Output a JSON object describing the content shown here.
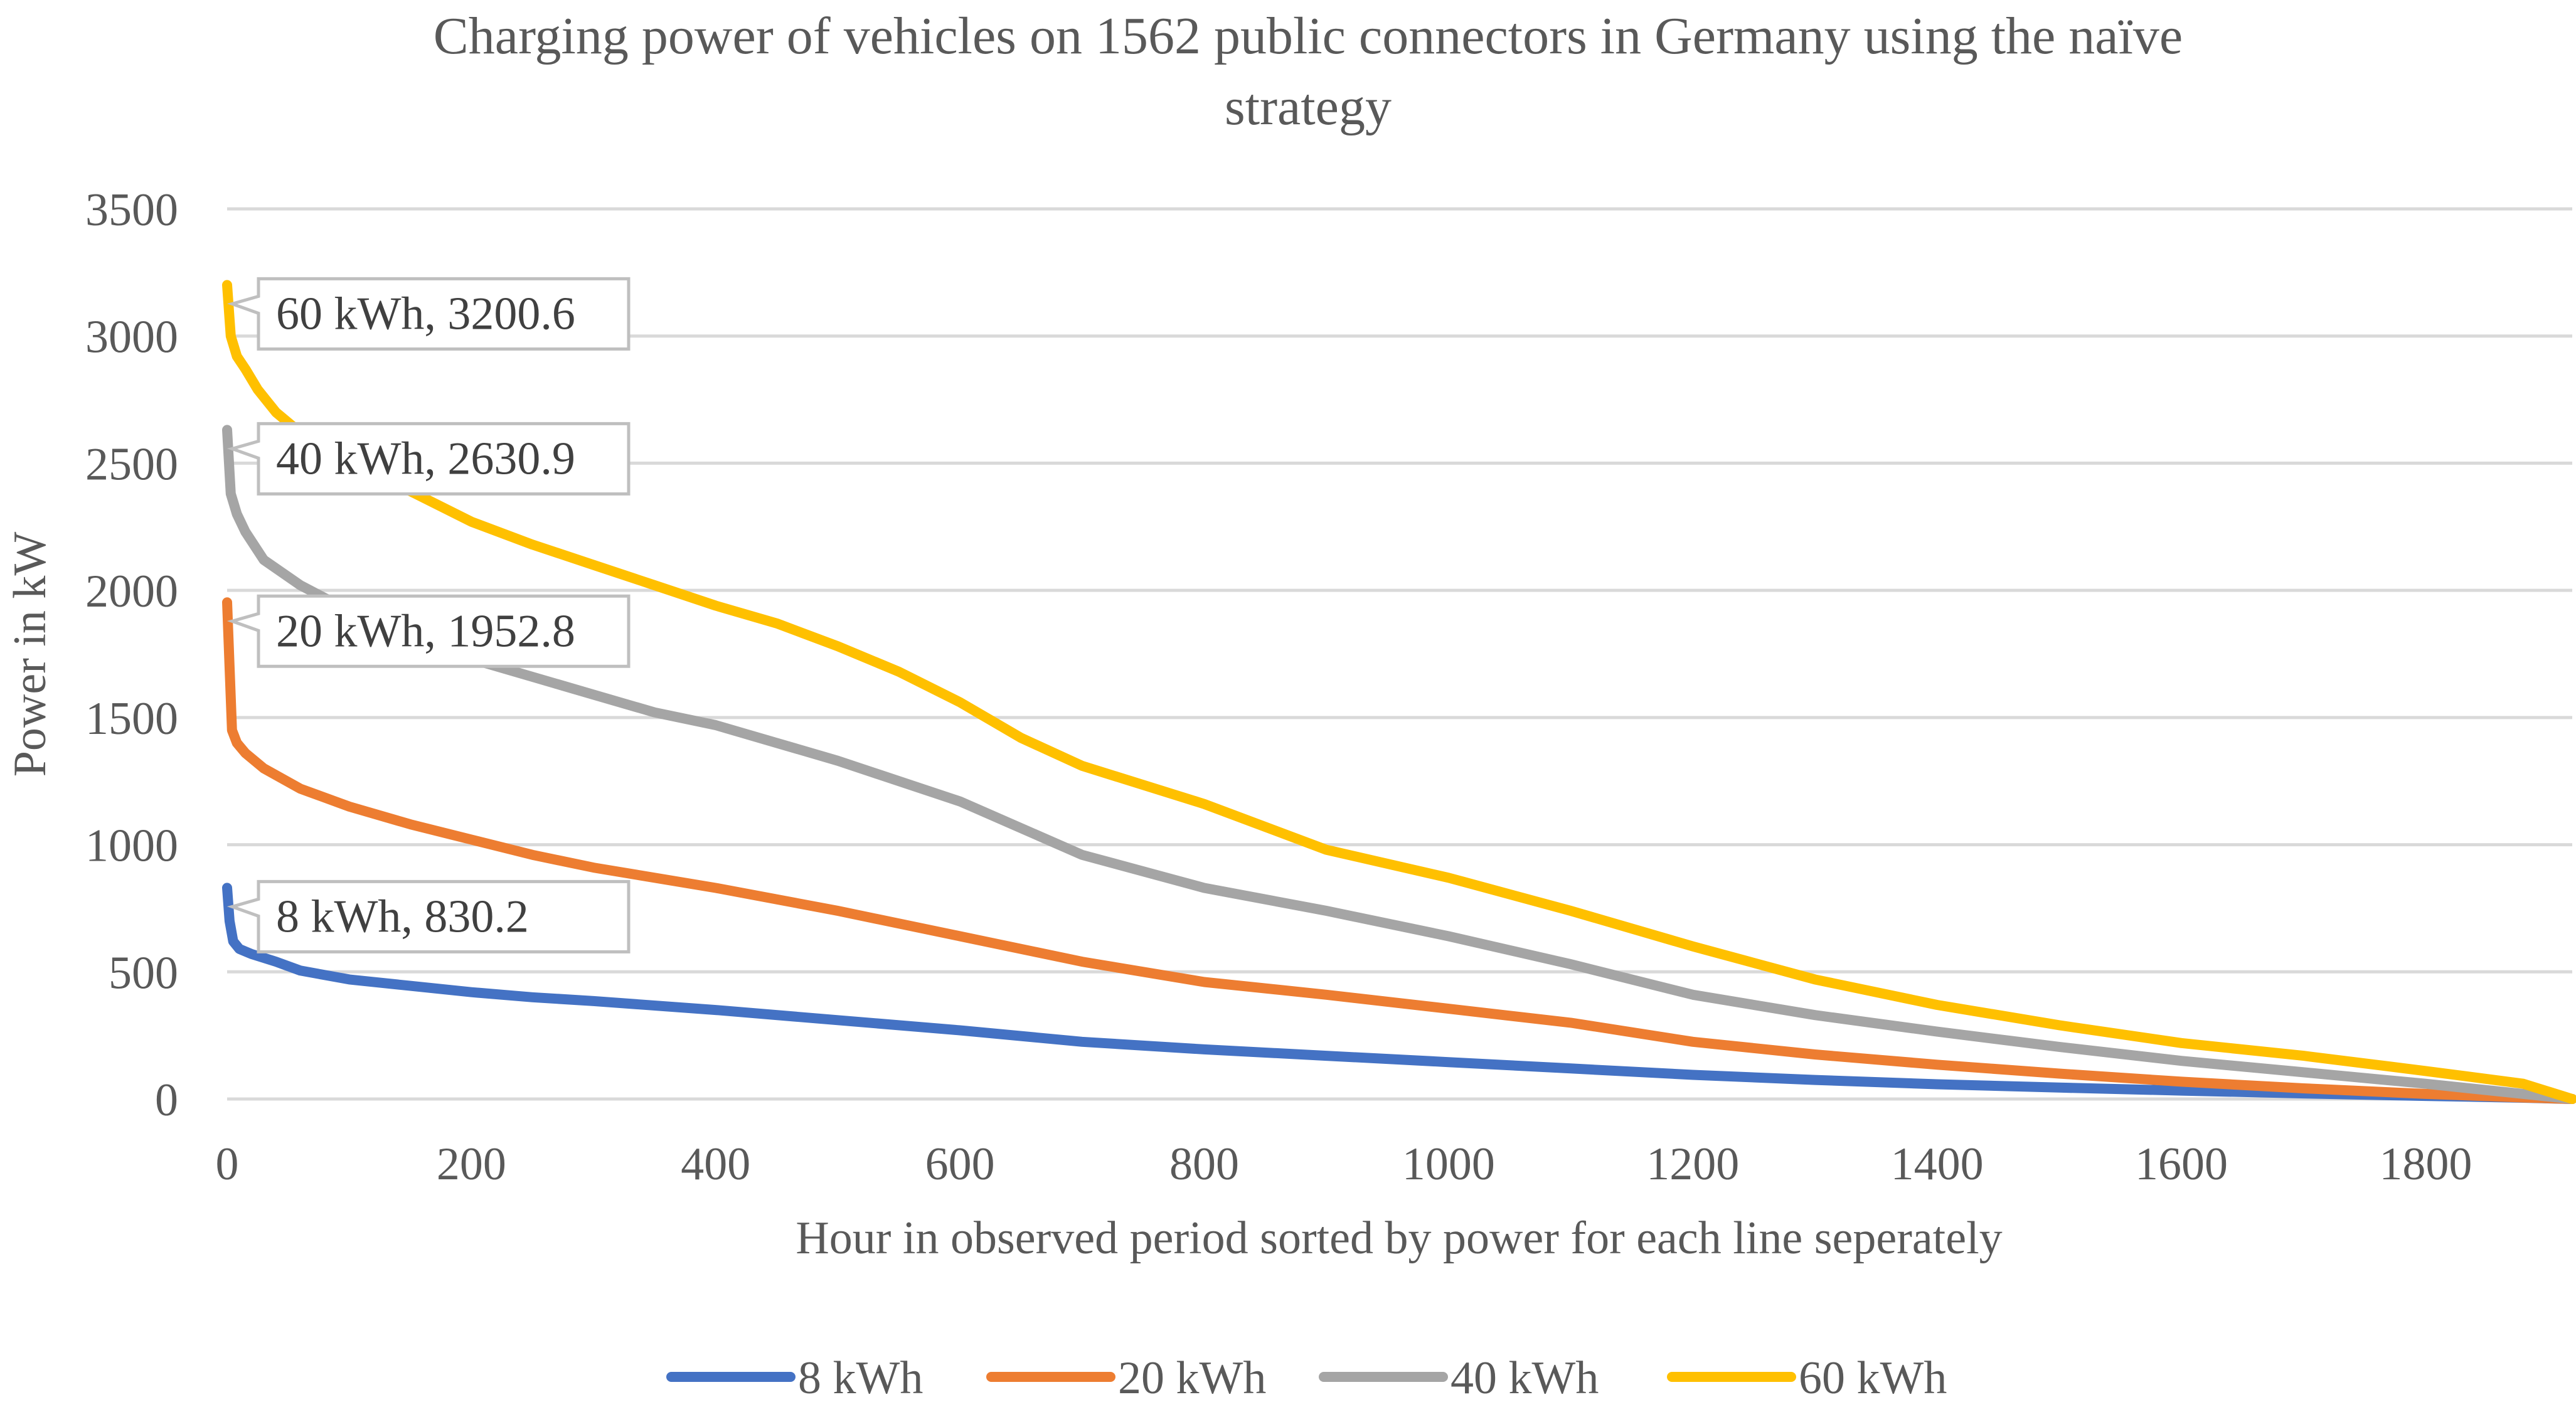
{
  "chart_data": {
    "type": "line",
    "title": "Charging power of vehicles on 1562 public connectors in Germany using the naïve strategy",
    "title_lines": [
      "Charging power of vehicles on 1562 public connectors in Germany using the naïve",
      "strategy"
    ],
    "xlabel": "Hour in observed period sorted by power for each line seperately",
    "ylabel": "Power in kW",
    "xlim": [
      0,
      1920
    ],
    "ylim": [
      0,
      3500
    ],
    "xticks": [
      0,
      200,
      400,
      600,
      800,
      1000,
      1200,
      1400,
      1600,
      1800
    ],
    "yticks": [
      0,
      500,
      1000,
      1500,
      2000,
      2500,
      3000,
      3500
    ],
    "grid": true,
    "legend_position": "bottom",
    "series": [
      {
        "name": "8 kWh",
        "color": "#4472C4",
        "x": [
          0,
          2,
          5,
          10,
          20,
          40,
          60,
          100,
          150,
          200,
          250,
          300,
          400,
          500,
          600,
          700,
          800,
          900,
          1000,
          1100,
          1200,
          1300,
          1400,
          1500,
          1600,
          1700,
          1800,
          1880,
          1920
        ],
        "y": [
          830.2,
          700,
          620,
          590,
          570,
          540,
          505,
          470,
          445,
          420,
          400,
          385,
          350,
          310,
          270,
          225,
          195,
          170,
          145,
          120,
          95,
          75,
          58,
          45,
          33,
          22,
          12,
          5,
          0
        ]
      },
      {
        "name": "20 kWh",
        "color": "#ED7D31",
        "x": [
          0,
          2,
          4,
          8,
          15,
          30,
          60,
          100,
          150,
          200,
          250,
          300,
          400,
          500,
          600,
          700,
          800,
          900,
          1000,
          1100,
          1200,
          1300,
          1400,
          1500,
          1600,
          1700,
          1800,
          1880,
          1920
        ],
        "y": [
          1952.8,
          1700,
          1450,
          1400,
          1360,
          1300,
          1220,
          1150,
          1080,
          1020,
          960,
          910,
          830,
          740,
          640,
          540,
          460,
          410,
          355,
          300,
          225,
          175,
          135,
          100,
          68,
          42,
          20,
          6,
          0
        ]
      },
      {
        "name": "40 kWh",
        "color": "#A5A5A5",
        "x": [
          0,
          3,
          8,
          15,
          30,
          60,
          100,
          150,
          200,
          250,
          300,
          350,
          400,
          450,
          500,
          600,
          700,
          800,
          900,
          1000,
          1100,
          1200,
          1300,
          1400,
          1500,
          1600,
          1700,
          1800,
          1880,
          1920
        ],
        "y": [
          2630.9,
          2380,
          2300,
          2230,
          2120,
          2020,
          1920,
          1820,
          1730,
          1660,
          1590,
          1520,
          1470,
          1400,
          1330,
          1170,
          960,
          830,
          740,
          640,
          530,
          410,
          330,
          265,
          205,
          150,
          105,
          60,
          20,
          0
        ]
      },
      {
        "name": "60 kWh",
        "color": "#FFC000",
        "x": [
          0,
          3,
          8,
          15,
          25,
          40,
          60,
          100,
          150,
          200,
          250,
          300,
          350,
          400,
          450,
          500,
          550,
          600,
          650,
          700,
          800,
          900,
          1000,
          1100,
          1200,
          1300,
          1400,
          1500,
          1600,
          1700,
          1800,
          1880,
          1920
        ],
        "y": [
          3200.6,
          3000,
          2920,
          2870,
          2790,
          2700,
          2620,
          2500,
          2390,
          2270,
          2180,
          2100,
          2020,
          1940,
          1870,
          1780,
          1680,
          1560,
          1420,
          1310,
          1160,
          980,
          870,
          740,
          600,
          470,
          370,
          290,
          220,
          170,
          110,
          60,
          0
        ]
      }
    ],
    "annotations": [
      {
        "series": "60 kWh",
        "label": "60 kWh, 3200.6",
        "x": 0,
        "y": 3200.6
      },
      {
        "series": "40 kWh",
        "label": "40 kWh, 2630.9",
        "x": 0,
        "y": 2630.9
      },
      {
        "series": "20 kWh",
        "label": "20 kWh, 1952.8",
        "x": 0,
        "y": 1952.8
      },
      {
        "series": "8 kWh",
        "label": "8 kWh, 830.2",
        "x": 0,
        "y": 830.2
      }
    ]
  }
}
